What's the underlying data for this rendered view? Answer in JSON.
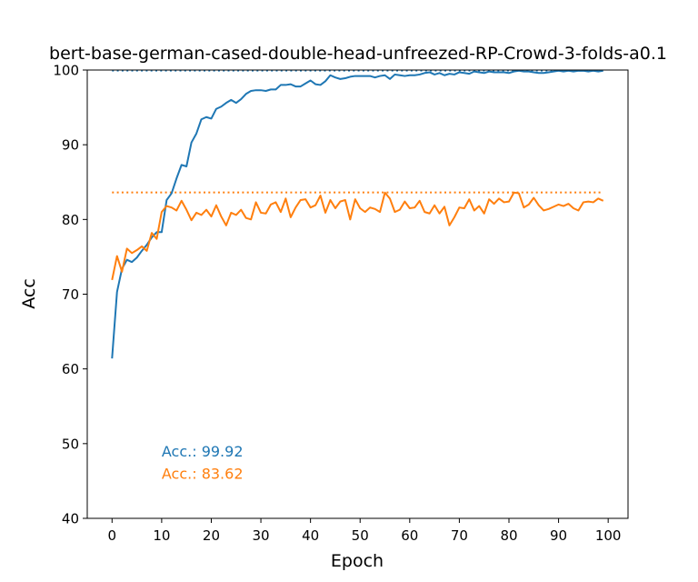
{
  "chart_data": {
    "type": "line",
    "title": "bert-base-german-cased-double-head-unfreezed-RP-Crowd-3-folds-a0.1",
    "xlabel": "Epoch",
    "ylabel": "Acc",
    "xlim": [
      -5,
      104
    ],
    "ylim": [
      40,
      100
    ],
    "xticks": [
      0,
      10,
      20,
      30,
      40,
      50,
      60,
      70,
      80,
      90,
      100
    ],
    "yticks": [
      40,
      50,
      60,
      70,
      80,
      90,
      100
    ],
    "x": [
      0,
      1,
      2,
      3,
      4,
      5,
      6,
      7,
      8,
      9,
      10,
      11,
      12,
      13,
      14,
      15,
      16,
      17,
      18,
      19,
      20,
      21,
      22,
      23,
      24,
      25,
      26,
      27,
      28,
      29,
      30,
      31,
      32,
      33,
      34,
      35,
      36,
      37,
      38,
      39,
      40,
      41,
      42,
      43,
      44,
      45,
      46,
      47,
      48,
      49,
      50,
      51,
      52,
      53,
      54,
      55,
      56,
      57,
      58,
      59,
      60,
      61,
      62,
      63,
      64,
      65,
      66,
      67,
      68,
      69,
      70,
      71,
      72,
      73,
      74,
      75,
      76,
      77,
      78,
      79,
      80,
      81,
      82,
      83,
      84,
      85,
      86,
      87,
      88,
      89,
      90,
      91,
      92,
      93,
      94,
      95,
      96,
      97,
      98,
      99
    ],
    "series": [
      {
        "color": "#1f77b4",
        "values": [
          61.4,
          70.3,
          73.4,
          74.6,
          74.3,
          74.9,
          75.8,
          76.6,
          77.6,
          78.3,
          78.3,
          82.6,
          83.5,
          85.5,
          87.3,
          87.1,
          90.3,
          91.5,
          93.4,
          93.7,
          93.5,
          94.8,
          95.1,
          95.6,
          96.0,
          95.6,
          96.1,
          96.8,
          97.2,
          97.3,
          97.3,
          97.2,
          97.4,
          97.4,
          98.0,
          98.0,
          98.1,
          97.8,
          97.8,
          98.2,
          98.6,
          98.1,
          98.0,
          98.5,
          99.3,
          99.0,
          98.8,
          98.9,
          99.1,
          99.2,
          99.2,
          99.2,
          99.2,
          99.0,
          99.2,
          99.3,
          98.8,
          99.4,
          99.3,
          99.2,
          99.3,
          99.3,
          99.4,
          99.6,
          99.7,
          99.4,
          99.6,
          99.3,
          99.5,
          99.4,
          99.7,
          99.6,
          99.5,
          99.8,
          99.7,
          99.6,
          99.8,
          99.7,
          99.7,
          99.7,
          99.6,
          99.8,
          99.9,
          99.8,
          99.8,
          99.7,
          99.6,
          99.6,
          99.7,
          99.8,
          99.9,
          99.8,
          99.9,
          99.8,
          99.9,
          99.9,
          99.8,
          99.9,
          99.8,
          99.9
        ]
      },
      {
        "color": "#ff7f0e",
        "values": [
          71.9,
          75.1,
          73.0,
          76.1,
          75.5,
          75.9,
          76.4,
          75.8,
          78.2,
          77.4,
          81.0,
          81.8,
          81.6,
          81.2,
          82.5,
          81.3,
          79.9,
          80.9,
          80.6,
          81.3,
          80.4,
          81.9,
          80.4,
          79.2,
          80.9,
          80.6,
          81.3,
          80.2,
          80.0,
          82.3,
          80.9,
          80.8,
          82.0,
          82.3,
          81.0,
          82.8,
          80.3,
          81.6,
          82.6,
          82.7,
          81.6,
          81.9,
          83.2,
          80.9,
          82.6,
          81.5,
          82.4,
          82.6,
          80.0,
          82.7,
          81.5,
          81.0,
          81.6,
          81.4,
          81.0,
          83.6,
          82.8,
          81.0,
          81.3,
          82.4,
          81.5,
          81.6,
          82.5,
          81.0,
          80.8,
          81.9,
          80.8,
          81.7,
          79.2,
          80.3,
          81.6,
          81.5,
          82.7,
          81.2,
          81.8,
          80.8,
          82.7,
          82.1,
          82.8,
          82.3,
          82.4,
          83.6,
          83.5,
          81.6,
          82.0,
          82.9,
          81.9,
          81.2,
          81.4,
          81.7,
          82.0,
          81.8,
          82.1,
          81.5,
          81.2,
          82.3,
          82.4,
          82.3,
          82.8,
          82.5
        ]
      }
    ],
    "reference_lines": [
      {
        "y": 99.92,
        "style": "dotted",
        "x_from": 0,
        "x_to": 99,
        "color": "#1f77b4"
      },
      {
        "y": 83.62,
        "style": "dotted",
        "x_from": 0,
        "x_to": 99,
        "color": "#ff7f0e"
      }
    ],
    "annotations": [
      {
        "text": "Acc.: 99.92",
        "color": "#1f77b4",
        "x": 10,
        "y": 48.3
      },
      {
        "text": "Acc.: 83.62",
        "color": "#ff7f0e",
        "x": 10,
        "y": 45.3
      }
    ],
    "grid": false
  }
}
